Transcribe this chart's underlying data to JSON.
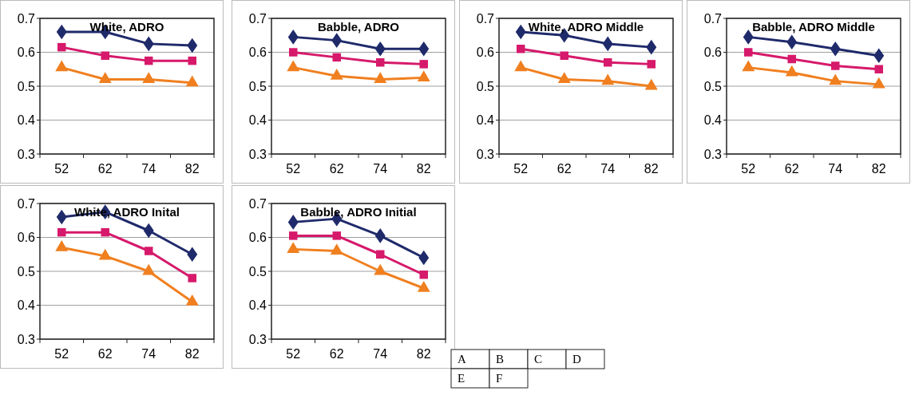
{
  "chart_data": [
    {
      "type": "line",
      "title": "White, ADRO",
      "categories": [
        "52",
        "62",
        "74",
        "82"
      ],
      "ylim": [
        0.3,
        0.7
      ],
      "yticks": [
        0.3,
        0.4,
        0.5,
        0.6,
        0.7
      ],
      "grid": "y",
      "line_style": "solid",
      "series": [
        {
          "color": "#1f2a6b",
          "marker": "diamond",
          "values": [
            0.66,
            0.66,
            0.625,
            0.62
          ]
        },
        {
          "color": "#d6196b",
          "marker": "square",
          "values": [
            0.615,
            0.59,
            0.575,
            0.575
          ]
        },
        {
          "color": "#f07f1f",
          "marker": "triangle",
          "values": [
            0.555,
            0.52,
            0.52,
            0.51
          ]
        }
      ]
    },
    {
      "type": "line",
      "title": "Babble, ADRO",
      "categories": [
        "52",
        "62",
        "74",
        "82"
      ],
      "ylim": [
        0.3,
        0.7
      ],
      "yticks": [
        0.3,
        0.4,
        0.5,
        0.6,
        0.7
      ],
      "grid": "y",
      "line_style": "solid",
      "series": [
        {
          "color": "#1f2a6b",
          "marker": "diamond",
          "values": [
            0.645,
            0.635,
            0.61,
            0.61
          ]
        },
        {
          "color": "#d6196b",
          "marker": "square",
          "values": [
            0.6,
            0.585,
            0.57,
            0.565
          ]
        },
        {
          "color": "#f07f1f",
          "marker": "triangle",
          "values": [
            0.555,
            0.53,
            0.52,
            0.525
          ]
        }
      ]
    },
    {
      "type": "line",
      "title": "White, ADRO Middle",
      "categories": [
        "52",
        "62",
        "74",
        "82"
      ],
      "ylim": [
        0.3,
        0.7
      ],
      "yticks": [
        0.3,
        0.4,
        0.5,
        0.6,
        0.7
      ],
      "grid": "y",
      "line_style": "solid",
      "series": [
        {
          "color": "#1f2a6b",
          "marker": "diamond",
          "values": [
            0.66,
            0.65,
            0.625,
            0.615
          ]
        },
        {
          "color": "#d6196b",
          "marker": "square",
          "values": [
            0.61,
            0.59,
            0.57,
            0.565
          ]
        },
        {
          "color": "#f07f1f",
          "marker": "triangle",
          "values": [
            0.555,
            0.52,
            0.515,
            0.5
          ]
        }
      ]
    },
    {
      "type": "line",
      "title": "Babble, ADRO Middle",
      "categories": [
        "52",
        "62",
        "74",
        "82"
      ],
      "ylim": [
        0.3,
        0.7
      ],
      "yticks": [
        0.3,
        0.4,
        0.5,
        0.6,
        0.7
      ],
      "grid": "y",
      "line_style": "solid",
      "series": [
        {
          "color": "#1f2a6b",
          "marker": "diamond",
          "values": [
            0.645,
            0.63,
            0.61,
            0.59
          ]
        },
        {
          "color": "#d6196b",
          "marker": "square",
          "values": [
            0.6,
            0.58,
            0.56,
            0.55
          ]
        },
        {
          "color": "#f07f1f",
          "marker": "triangle",
          "values": [
            0.555,
            0.54,
            0.515,
            0.505
          ]
        }
      ]
    },
    {
      "type": "line",
      "title": "White, ADRO Inital",
      "categories": [
        "52",
        "62",
        "74",
        "82"
      ],
      "ylim": [
        0.3,
        0.7
      ],
      "yticks": [
        0.3,
        0.4,
        0.5,
        0.6,
        0.7
      ],
      "grid": "y",
      "line_style": "solid",
      "series": [
        {
          "color": "#1f2a6b",
          "marker": "diamond",
          "values": [
            0.66,
            0.675,
            0.62,
            0.55
          ]
        },
        {
          "color": "#d6196b",
          "marker": "square",
          "values": [
            0.615,
            0.615,
            0.56,
            0.48
          ]
        },
        {
          "color": "#f07f1f",
          "marker": "triangle",
          "values": [
            0.57,
            0.545,
            0.5,
            0.41
          ]
        }
      ]
    },
    {
      "type": "line",
      "title": "Babble, ADRO Initial",
      "categories": [
        "52",
        "62",
        "74",
        "82"
      ],
      "ylim": [
        0.3,
        0.7
      ],
      "yticks": [
        0.3,
        0.4,
        0.5,
        0.6,
        0.7
      ],
      "grid": "y",
      "line_style": "solid",
      "series": [
        {
          "color": "#1f2a6b",
          "marker": "diamond",
          "values": [
            0.645,
            0.655,
            0.605,
            0.54
          ]
        },
        {
          "color": "#d6196b",
          "marker": "square",
          "values": [
            0.605,
            0.605,
            0.55,
            0.49
          ]
        },
        {
          "color": "#f07f1f",
          "marker": "triangle",
          "values": [
            0.565,
            0.56,
            0.5,
            0.45
          ]
        }
      ]
    },
    {
      "type": "other",
      "annotations": [
        "A",
        "B",
        "C",
        "D",
        "E",
        "F"
      ]
    }
  ]
}
